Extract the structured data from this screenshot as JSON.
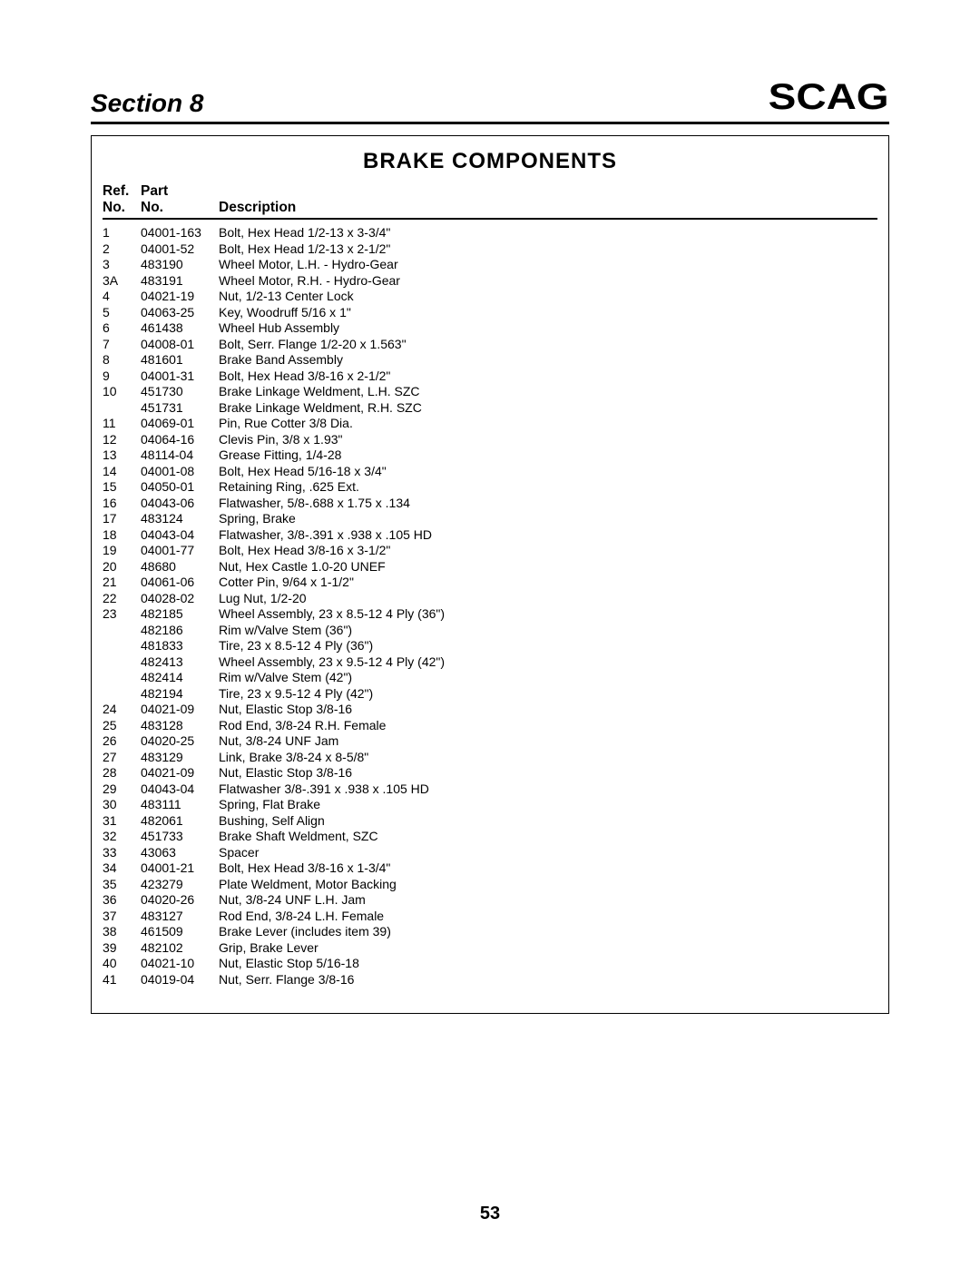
{
  "header": {
    "section_label": "Section 8",
    "logo_text": "SCAG"
  },
  "table": {
    "title": "BRAKE COMPONENTS",
    "columns": {
      "ref_top": "Ref.",
      "ref_bot": "No.",
      "part_top": "Part",
      "part_bot": "No.",
      "desc": "Description"
    },
    "rows": [
      {
        "ref": "1",
        "part": "04001-163",
        "desc": "Bolt, Hex Head 1/2-13 x 3-3/4\""
      },
      {
        "ref": "2",
        "part": "04001-52",
        "desc": "Bolt, Hex Head 1/2-13 x 2-1/2\""
      },
      {
        "ref": "3",
        "part": "483190",
        "desc": "Wheel Motor, L.H. - Hydro-Gear"
      },
      {
        "ref": "3A",
        "part": "483191",
        "desc": "Wheel Motor, R.H. - Hydro-Gear"
      },
      {
        "ref": "4",
        "part": "04021-19",
        "desc": "Nut, 1/2-13 Center Lock"
      },
      {
        "ref": "5",
        "part": "04063-25",
        "desc": "Key, Woodruff 5/16 x 1\""
      },
      {
        "ref": "6",
        "part": "461438",
        "desc": "Wheel Hub Assembly"
      },
      {
        "ref": "7",
        "part": "04008-01",
        "desc": "Bolt, Serr. Flange 1/2-20 x 1.563\""
      },
      {
        "ref": "8",
        "part": "481601",
        "desc": "Brake Band Assembly"
      },
      {
        "ref": "9",
        "part": "04001-31",
        "desc": "Bolt, Hex Head 3/8-16 x 2-1/2\""
      },
      {
        "ref": "10",
        "part": "451730",
        "desc": "Brake Linkage Weldment, L.H. SZC"
      },
      {
        "ref": "",
        "part": "451731",
        "desc": "Brake Linkage Weldment, R.H. SZC"
      },
      {
        "ref": "11",
        "part": "04069-01",
        "desc": "Pin, Rue Cotter 3/8 Dia."
      },
      {
        "ref": "12",
        "part": "04064-16",
        "desc": "Clevis Pin, 3/8 x 1.93\""
      },
      {
        "ref": "13",
        "part": "48114-04",
        "desc": "Grease Fitting, 1/4-28"
      },
      {
        "ref": "14",
        "part": "04001-08",
        "desc": "Bolt, Hex Head 5/16-18 x 3/4\""
      },
      {
        "ref": "15",
        "part": "04050-01",
        "desc": "Retaining Ring, .625 Ext."
      },
      {
        "ref": "16",
        "part": "04043-06",
        "desc": "Flatwasher, 5/8-.688 x 1.75 x .134"
      },
      {
        "ref": "17",
        "part": "483124",
        "desc": "Spring, Brake"
      },
      {
        "ref": "18",
        "part": "04043-04",
        "desc": "Flatwasher, 3/8-.391 x .938 x .105 HD"
      },
      {
        "ref": "19",
        "part": "04001-77",
        "desc": "Bolt, Hex Head 3/8-16 x 3-1/2\""
      },
      {
        "ref": "20",
        "part": "48680",
        "desc": "Nut, Hex Castle 1.0-20 UNEF"
      },
      {
        "ref": "21",
        "part": "04061-06",
        "desc": "Cotter Pin, 9/64 x 1-1/2\""
      },
      {
        "ref": "22",
        "part": "04028-02",
        "desc": "Lug Nut, 1/2-20"
      },
      {
        "ref": "23",
        "part": "482185",
        "desc": "Wheel Assembly, 23 x 8.5-12 4 Ply (36\")"
      },
      {
        "ref": "",
        "part": "482186",
        "desc": "Rim w/Valve Stem (36\")"
      },
      {
        "ref": "",
        "part": "481833",
        "desc": "Tire, 23 x 8.5-12 4 Ply (36\")"
      },
      {
        "ref": "",
        "part": "482413",
        "desc": "Wheel Assembly, 23 x 9.5-12 4 Ply (42\")"
      },
      {
        "ref": "",
        "part": "482414",
        "desc": "Rim w/Valve Stem (42\")"
      },
      {
        "ref": "",
        "part": "482194",
        "desc": "Tire, 23 x 9.5-12 4 Ply (42\")"
      },
      {
        "ref": "24",
        "part": "04021-09",
        "desc": "Nut, Elastic Stop 3/8-16"
      },
      {
        "ref": "25",
        "part": "483128",
        "desc": "Rod End, 3/8-24 R.H. Female"
      },
      {
        "ref": "26",
        "part": "04020-25",
        "desc": "Nut, 3/8-24 UNF Jam"
      },
      {
        "ref": "27",
        "part": "483129",
        "desc": "Link, Brake 3/8-24 x 8-5/8\""
      },
      {
        "ref": "28",
        "part": "04021-09",
        "desc": "Nut, Elastic Stop 3/8-16"
      },
      {
        "ref": "29",
        "part": "04043-04",
        "desc": "Flatwasher 3/8-.391 x .938 x .105 HD"
      },
      {
        "ref": "30",
        "part": "483111",
        "desc": "Spring, Flat Brake"
      },
      {
        "ref": "31",
        "part": "482061",
        "desc": "Bushing, Self Align"
      },
      {
        "ref": "32",
        "part": "451733",
        "desc": "Brake Shaft Weldment, SZC"
      },
      {
        "ref": "33",
        "part": "43063",
        "desc": "Spacer"
      },
      {
        "ref": "34",
        "part": "04001-21",
        "desc": "Bolt, Hex Head 3/8-16 x 1-3/4\""
      },
      {
        "ref": "35",
        "part": "423279",
        "desc": "Plate Weldment, Motor Backing"
      },
      {
        "ref": "36",
        "part": "04020-26",
        "desc": "Nut, 3/8-24 UNF L.H. Jam"
      },
      {
        "ref": "37",
        "part": "483127",
        "desc": "Rod End, 3/8-24 L.H. Female"
      },
      {
        "ref": "38",
        "part": "461509",
        "desc": "Brake Lever (includes item 39)"
      },
      {
        "ref": "39",
        "part": "482102",
        "desc": "Grip, Brake Lever"
      },
      {
        "ref": "40",
        "part": "04021-10",
        "desc": "Nut, Elastic Stop 5/16-18"
      },
      {
        "ref": "41",
        "part": "04019-04",
        "desc": "Nut, Serr. Flange 3/8-16"
      }
    ]
  },
  "page_number": "53"
}
